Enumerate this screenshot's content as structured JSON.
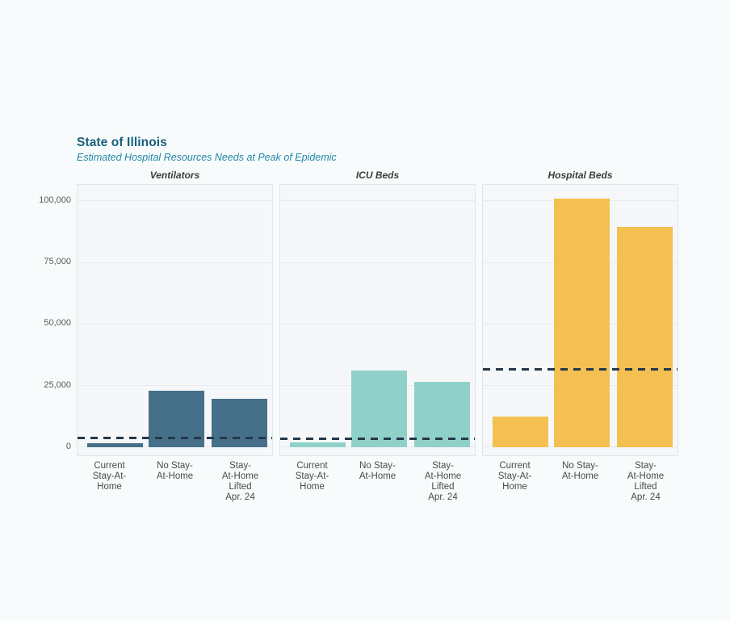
{
  "page": {
    "background": "#f8fbfc",
    "panel_background": "#f5f7f8",
    "panel_border": "#e3e6e9",
    "gridline_color": "#e8eaee",
    "title_color": "#16607a",
    "subtitle_color": "#2187a5"
  },
  "chart_data": {
    "type": "bar",
    "title": "State of Illinois",
    "subtitle": "Estimated Hospital Resources Needs at Peak of Epidemic",
    "xlabel": "",
    "ylabel": "",
    "grid": true,
    "legend": false,
    "ylim": [
      -4000,
      106500
    ],
    "y_ticks": [
      {
        "value": 0,
        "label": "0"
      },
      {
        "value": 25000,
        "label": "25,000"
      },
      {
        "value": 50000,
        "label": "50,000"
      },
      {
        "value": 75000,
        "label": "75,000"
      },
      {
        "value": 100000,
        "label": "100,000"
      }
    ],
    "categories": [
      "Current Stay-At-Home",
      "No Stay-At-Home",
      "Stay-At-Home Lifted Apr. 24"
    ],
    "category_display": [
      "Current\nStay-At-\nHome",
      "No Stay-\nAt-Home",
      "Stay-\nAt-Home\nLifted\nApr. 24"
    ],
    "capacity_line_color": "#24384a",
    "facets": [
      {
        "title": "Ventilators",
        "bar_color": "#46708a",
        "values": [
          1500,
          23000,
          19500
        ],
        "capacity_line": 3700
      },
      {
        "title": "ICU Beds",
        "bar_color": "#8fd1c9",
        "values": [
          2000,
          31000,
          26500
        ],
        "capacity_line": 3400
      },
      {
        "title": "Hospital Beds",
        "bar_color": "#f3c051",
        "values": [
          12300,
          101000,
          89500
        ],
        "capacity_line": 31700
      }
    ]
  }
}
